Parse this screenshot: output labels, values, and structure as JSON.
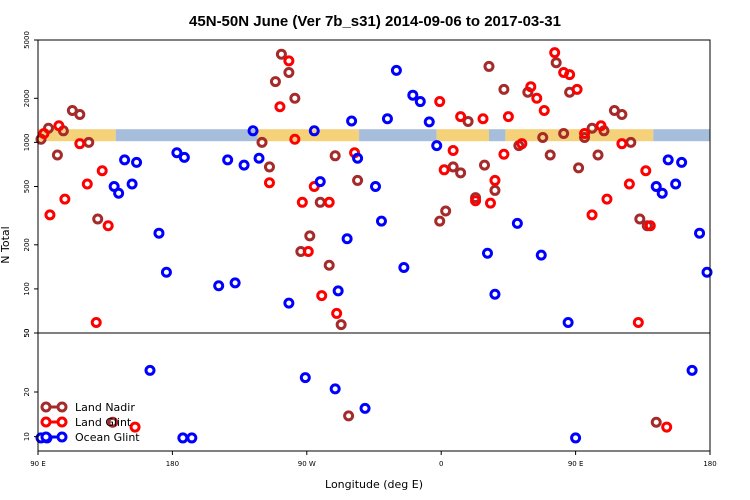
{
  "chart_data": {
    "type": "scatter",
    "title": "45N-50N June (Ver 7b_s31)   2014-09-06 to 2017-03-31",
    "xlabel": "Longitude (deg E)",
    "ylabel": "N Total",
    "x_ticks": [
      {
        "value": 90,
        "label": "90 E"
      },
      {
        "value": 180,
        "label": "180"
      },
      {
        "value": 270,
        "label": "90 W"
      },
      {
        "value": 360,
        "label": "0"
      },
      {
        "value": 450,
        "label": "90 E"
      },
      {
        "value": 540,
        "label": "180"
      }
    ],
    "xlim": [
      90,
      540
    ],
    "y_scale": "log",
    "upper_panel": {
      "ylim": [
        50,
        5000
      ],
      "y_ticks": [
        {
          "value": 5000,
          "label": "5000"
        },
        {
          "value": 2000,
          "label": "2000"
        },
        {
          "value": 1000,
          "label": "1000"
        },
        {
          "value": 500,
          "label": "500"
        },
        {
          "value": 200,
          "label": "200"
        },
        {
          "value": 100,
          "label": "100"
        },
        {
          "value": 50,
          "label": "50"
        }
      ]
    },
    "lower_panel": {
      "ylim": [
        8,
        50
      ],
      "y_ticks": [
        {
          "value": 50,
          "label": "50"
        },
        {
          "value": 20,
          "label": "20"
        },
        {
          "value": 10,
          "label": "10"
        }
      ]
    },
    "map_strip": {
      "y": 1120,
      "land_color": "#f5d27a",
      "ocean_color": "#a6bddb",
      "segments": [
        {
          "x0": 90,
          "x1": 142,
          "kind": "land"
        },
        {
          "x0": 142,
          "x1": 237,
          "kind": "ocean"
        },
        {
          "x0": 237,
          "x1": 305,
          "kind": "land"
        },
        {
          "x0": 305,
          "x1": 357,
          "kind": "ocean"
        },
        {
          "x0": 357,
          "x1": 392,
          "kind": "land"
        },
        {
          "x0": 392,
          "x1": 403,
          "kind": "ocean"
        },
        {
          "x0": 403,
          "x1": 502,
          "kind": "land"
        },
        {
          "x0": 502,
          "x1": 540,
          "kind": "ocean"
        }
      ]
    },
    "series": [
      {
        "name": "Land Nadir",
        "color": "#a52a2a",
        "points": [
          {
            "x": 92,
            "y": 1050
          },
          {
            "x": 97,
            "y": 1250
          },
          {
            "x": 103,
            "y": 820
          },
          {
            "x": 107,
            "y": 1200
          },
          {
            "x": 113,
            "y": 1650
          },
          {
            "x": 118,
            "y": 1550
          },
          {
            "x": 124,
            "y": 1000
          },
          {
            "x": 130,
            "y": 300
          },
          {
            "x": 140,
            "y": 12.5
          },
          {
            "x": 240,
            "y": 1000
          },
          {
            "x": 245,
            "y": 680
          },
          {
            "x": 249,
            "y": 2600
          },
          {
            "x": 253,
            "y": 4000
          },
          {
            "x": 258,
            "y": 3000
          },
          {
            "x": 262,
            "y": 2000
          },
          {
            "x": 266,
            "y": 180
          },
          {
            "x": 272,
            "y": 230
          },
          {
            "x": 279,
            "y": 390
          },
          {
            "x": 285,
            "y": 145
          },
          {
            "x": 289,
            "y": 810
          },
          {
            "x": 293,
            "y": 57
          },
          {
            "x": 298,
            "y": 13.8
          },
          {
            "x": 304,
            "y": 550
          },
          {
            "x": 359,
            "y": 290
          },
          {
            "x": 363,
            "y": 340
          },
          {
            "x": 368,
            "y": 680
          },
          {
            "x": 373,
            "y": 620
          },
          {
            "x": 378,
            "y": 1390
          },
          {
            "x": 383,
            "y": 420
          },
          {
            "x": 389,
            "y": 700
          },
          {
            "x": 392,
            "y": 3300
          },
          {
            "x": 396,
            "y": 470
          },
          {
            "x": 402,
            "y": 2300
          },
          {
            "x": 412,
            "y": 950
          },
          {
            "x": 418,
            "y": 2200
          },
          {
            "x": 428,
            "y": 1080
          },
          {
            "x": 433,
            "y": 820
          },
          {
            "x": 437,
            "y": 3500
          },
          {
            "x": 442,
            "y": 1150
          },
          {
            "x": 446,
            "y": 2200
          },
          {
            "x": 452,
            "y": 670
          },
          {
            "x": 456,
            "y": 1080
          },
          {
            "x": 461,
            "y": 1250
          },
          {
            "x": 465,
            "y": 820
          },
          {
            "x": 469,
            "y": 1200
          },
          {
            "x": 476,
            "y": 1650
          },
          {
            "x": 481,
            "y": 1550
          },
          {
            "x": 487,
            "y": 1000
          },
          {
            "x": 493,
            "y": 300
          },
          {
            "x": 498,
            "y": 270
          },
          {
            "x": 504,
            "y": 12.5
          }
        ]
      },
      {
        "name": "Land Glint",
        "color": "#ff0000",
        "points": [
          {
            "x": 94,
            "y": 1150
          },
          {
            "x": 98,
            "y": 320
          },
          {
            "x": 104,
            "y": 1300
          },
          {
            "x": 108,
            "y": 410
          },
          {
            "x": 118,
            "y": 980
          },
          {
            "x": 123,
            "y": 520
          },
          {
            "x": 129,
            "y": 59
          },
          {
            "x": 133,
            "y": 640
          },
          {
            "x": 137,
            "y": 270
          },
          {
            "x": 155,
            "y": 11.6
          },
          {
            "x": 245,
            "y": 530
          },
          {
            "x": 252,
            "y": 1750
          },
          {
            "x": 258,
            "y": 3600
          },
          {
            "x": 262,
            "y": 1050
          },
          {
            "x": 267,
            "y": 390
          },
          {
            "x": 271,
            "y": 180
          },
          {
            "x": 275,
            "y": 500
          },
          {
            "x": 280,
            "y": 90
          },
          {
            "x": 285,
            "y": 390
          },
          {
            "x": 290,
            "y": 68
          },
          {
            "x": 302,
            "y": 850
          },
          {
            "x": 359,
            "y": 1900
          },
          {
            "x": 362,
            "y": 650
          },
          {
            "x": 368,
            "y": 880
          },
          {
            "x": 373,
            "y": 1500
          },
          {
            "x": 383,
            "y": 400
          },
          {
            "x": 388,
            "y": 1450
          },
          {
            "x": 393,
            "y": 385
          },
          {
            "x": 396,
            "y": 550
          },
          {
            "x": 402,
            "y": 830
          },
          {
            "x": 405,
            "y": 1500
          },
          {
            "x": 414,
            "y": 980
          },
          {
            "x": 420,
            "y": 2400
          },
          {
            "x": 424,
            "y": 2000
          },
          {
            "x": 429,
            "y": 1650
          },
          {
            "x": 436,
            "y": 4100
          },
          {
            "x": 442,
            "y": 3000
          },
          {
            "x": 446,
            "y": 2900
          },
          {
            "x": 451,
            "y": 2300
          },
          {
            "x": 456,
            "y": 1150
          },
          {
            "x": 461,
            "y": 320
          },
          {
            "x": 467,
            "y": 1300
          },
          {
            "x": 471,
            "y": 410
          },
          {
            "x": 481,
            "y": 980
          },
          {
            "x": 486,
            "y": 520
          },
          {
            "x": 492,
            "y": 59
          },
          {
            "x": 497,
            "y": 640
          },
          {
            "x": 500,
            "y": 270
          },
          {
            "x": 511,
            "y": 11.6
          }
        ]
      },
      {
        "name": "Ocean Glint",
        "color": "#0000ff",
        "points": [
          {
            "x": 92,
            "y": 9.8
          },
          {
            "x": 96,
            "y": 9.8
          },
          {
            "x": 141,
            "y": 500
          },
          {
            "x": 144,
            "y": 450
          },
          {
            "x": 148,
            "y": 760
          },
          {
            "x": 153,
            "y": 520
          },
          {
            "x": 156,
            "y": 730
          },
          {
            "x": 165,
            "y": 28
          },
          {
            "x": 171,
            "y": 240
          },
          {
            "x": 176,
            "y": 130
          },
          {
            "x": 183,
            "y": 850
          },
          {
            "x": 187,
            "y": 9.8
          },
          {
            "x": 188,
            "y": 790
          },
          {
            "x": 193,
            "y": 9.8
          },
          {
            "x": 211,
            "y": 105
          },
          {
            "x": 217,
            "y": 760
          },
          {
            "x": 222,
            "y": 110
          },
          {
            "x": 228,
            "y": 700
          },
          {
            "x": 234,
            "y": 1200
          },
          {
            "x": 238,
            "y": 780
          },
          {
            "x": 258,
            "y": 80
          },
          {
            "x": 269,
            "y": 25
          },
          {
            "x": 275,
            "y": 1200
          },
          {
            "x": 279,
            "y": 540
          },
          {
            "x": 289,
            "y": 21
          },
          {
            "x": 291,
            "y": 97
          },
          {
            "x": 297,
            "y": 220
          },
          {
            "x": 300,
            "y": 1400
          },
          {
            "x": 304,
            "y": 780
          },
          {
            "x": 309,
            "y": 15.5
          },
          {
            "x": 316,
            "y": 500
          },
          {
            "x": 320,
            "y": 290
          },
          {
            "x": 324,
            "y": 1450
          },
          {
            "x": 330,
            "y": 3100
          },
          {
            "x": 335,
            "y": 140
          },
          {
            "x": 341,
            "y": 2100
          },
          {
            "x": 346,
            "y": 1900
          },
          {
            "x": 352,
            "y": 1380
          },
          {
            "x": 357,
            "y": 950
          },
          {
            "x": 391,
            "y": 175
          },
          {
            "x": 396,
            "y": 92
          },
          {
            "x": 411,
            "y": 280
          },
          {
            "x": 427,
            "y": 170
          },
          {
            "x": 445,
            "y": 59
          },
          {
            "x": 450,
            "y": 9.8
          },
          {
            "x": 504,
            "y": 500
          },
          {
            "x": 508,
            "y": 450
          },
          {
            "x": 512,
            "y": 760
          },
          {
            "x": 517,
            "y": 520
          },
          {
            "x": 521,
            "y": 730
          },
          {
            "x": 528,
            "y": 28
          },
          {
            "x": 533,
            "y": 240
          },
          {
            "x": 538,
            "y": 130
          }
        ]
      }
    ]
  }
}
